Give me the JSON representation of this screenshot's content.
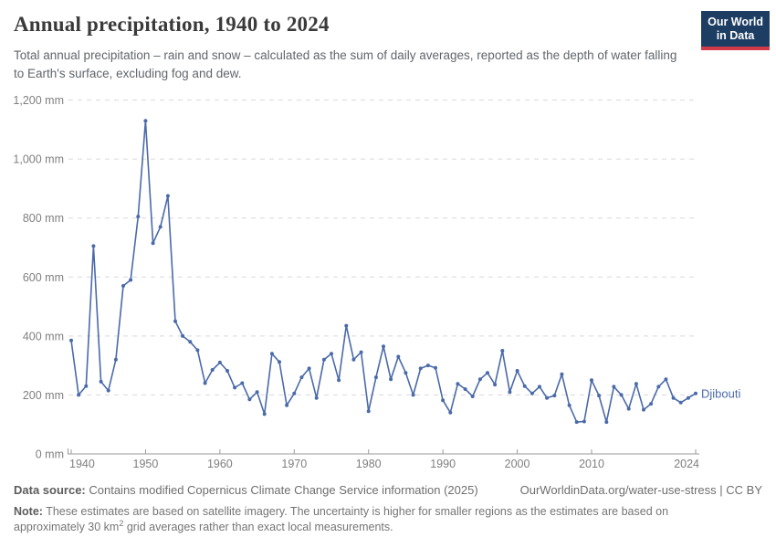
{
  "header": {
    "title": "Annual precipitation, 1940 to 2024",
    "subtitle": "Total annual precipitation – rain and snow – calculated as the sum of daily averages, reported as the depth of water falling to Earth's surface, excluding fog and dew.",
    "logo": {
      "line1": "Our World",
      "line2": "in Data",
      "bg_color": "#1d3d63",
      "stripe_color": "#d23a47"
    }
  },
  "chart_data": {
    "type": "line",
    "title": "Annual precipitation, 1940 to 2024",
    "unit": "mm",
    "xlabel": "",
    "ylabel": "Annual precipitation (mm)",
    "xlim": [
      1940,
      2024
    ],
    "ylim": [
      0,
      1200
    ],
    "grid": "horizontal-dashed",
    "legend_position": "end-of-line-label",
    "x": [
      1940,
      1941,
      1942,
      1943,
      1944,
      1945,
      1946,
      1947,
      1948,
      1949,
      1950,
      1951,
      1952,
      1953,
      1954,
      1955,
      1956,
      1957,
      1958,
      1959,
      1960,
      1961,
      1962,
      1963,
      1964,
      1965,
      1966,
      1967,
      1968,
      1969,
      1970,
      1971,
      1972,
      1973,
      1974,
      1975,
      1976,
      1977,
      1978,
      1979,
      1980,
      1981,
      1982,
      1983,
      1984,
      1985,
      1986,
      1987,
      1988,
      1989,
      1990,
      1991,
      1992,
      1993,
      1994,
      1995,
      1996,
      1997,
      1998,
      1999,
      2000,
      2001,
      2002,
      2003,
      2004,
      2005,
      2006,
      2007,
      2008,
      2009,
      2010,
      2011,
      2012,
      2013,
      2014,
      2015,
      2016,
      2017,
      2018,
      2019,
      2020,
      2021,
      2022,
      2023,
      2024
    ],
    "series": [
      {
        "name": "Djibouti",
        "color": "#4b6aa9",
        "values": [
          385,
          200,
          230,
          705,
          245,
          215,
          320,
          570,
          590,
          805,
          1130,
          715,
          770,
          875,
          450,
          400,
          380,
          352,
          240,
          285,
          310,
          282,
          225,
          240,
          185,
          210,
          135,
          340,
          312,
          165,
          205,
          260,
          290,
          190,
          320,
          340,
          250,
          435,
          320,
          345,
          145,
          260,
          365,
          253,
          330,
          275,
          200,
          290,
          300,
          292,
          182,
          140,
          238,
          220,
          195,
          253,
          275,
          235,
          350,
          210,
          282,
          230,
          205,
          228,
          190,
          198,
          270,
          165,
          108,
          110,
          250,
          198,
          108,
          228,
          200,
          153,
          238,
          150,
          170,
          228,
          253,
          190,
          174,
          190,
          205
        ]
      }
    ],
    "y_ticks": [
      {
        "value": 0,
        "label": "0 mm"
      },
      {
        "value": 200,
        "label": "200 mm"
      },
      {
        "value": 400,
        "label": "400 mm"
      },
      {
        "value": 600,
        "label": "600 mm"
      },
      {
        "value": 800,
        "label": "800 mm"
      },
      {
        "value": 1000,
        "label": "1,000 mm"
      },
      {
        "value": 1200,
        "label": "1,200 mm"
      }
    ],
    "x_ticks": [
      {
        "value": 1940,
        "label": "1940"
      },
      {
        "value": 1950,
        "label": "1950"
      },
      {
        "value": 1960,
        "label": "1960"
      },
      {
        "value": 1970,
        "label": "1970"
      },
      {
        "value": 1980,
        "label": "1980"
      },
      {
        "value": 1990,
        "label": "1990"
      },
      {
        "value": 2000,
        "label": "2000"
      },
      {
        "value": 2010,
        "label": "2010"
      },
      {
        "value": 2024,
        "label": "2024"
      }
    ],
    "style": {
      "grid_color": "#d9d9d9",
      "axis_color": "#9a9a9a",
      "tick_label_color": "#7f7f7f"
    }
  },
  "footer": {
    "datasource_label": "Data source:",
    "datasource_text": " Contains modified Copernicus Climate Change Service information (2025)",
    "link_text": "OurWorldinData.org/water-use-stress | CC BY",
    "note_label": "Note:",
    "note_text_1": " These estimates are based on satellite imagery. The uncertainty is higher for smaller regions as the estimates are based on approximately 30 km",
    "note_sup": "2",
    "note_text_2": " grid averages rather than exact local measurements."
  }
}
